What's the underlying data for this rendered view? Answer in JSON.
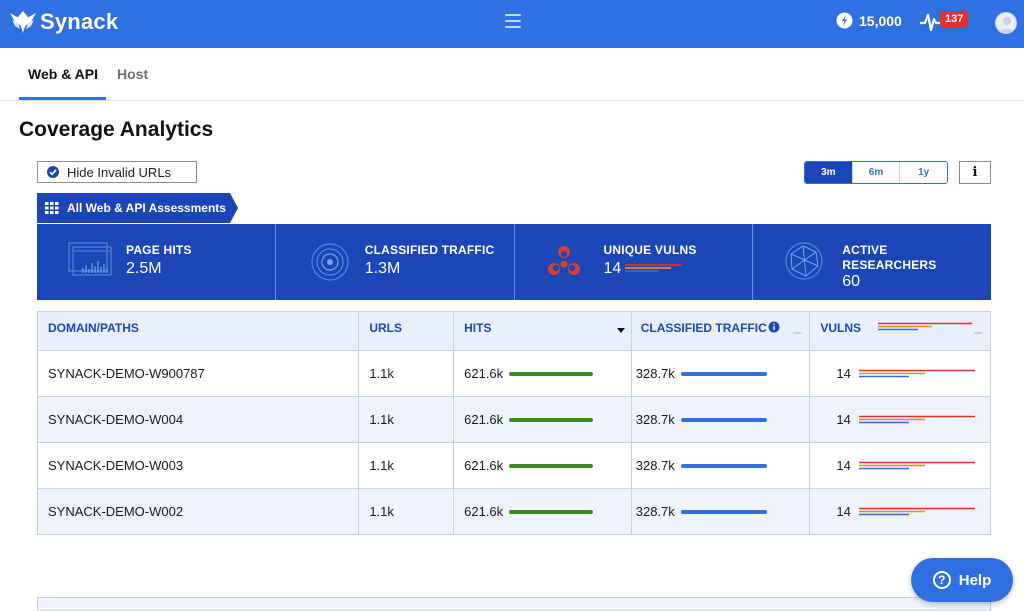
{
  "colors": {
    "brand": "#2f6fe0",
    "dark_blue": "#1c46b8",
    "green_bar": "#3a8a1f",
    "alert_red": "#e4312b",
    "vuln_orange": "#e08a2c"
  },
  "header": {
    "logo_text": "Synack",
    "menu_icon": "hamburger-icon",
    "points": "15,000",
    "alerts_count": "137"
  },
  "tabs": [
    {
      "label": "Web & API",
      "active": true
    },
    {
      "label": "Host",
      "active": false
    }
  ],
  "page": {
    "title": "Coverage Analytics",
    "hide_invalid_label": "Hide Invalid URLs",
    "range_options": [
      "3m",
      "6m",
      "1y"
    ],
    "range_selected": "3m",
    "info_label": "i",
    "assessment_label": "All Web & API Assessments"
  },
  "stats": [
    {
      "label": "PAGE HITS",
      "value": "2.5M",
      "icon": "page-hits-icon"
    },
    {
      "label": "CLASSIFIED TRAFFIC",
      "value": "1.3M",
      "icon": "traffic-icon"
    },
    {
      "label": "UNIQUE VULNS",
      "value": "14",
      "icon": "biohazard-icon"
    },
    {
      "label_line1": "ACTIVE",
      "label_line2": "RESEARCHERS",
      "value": "60",
      "icon": "network-icon"
    }
  ],
  "table": {
    "headers": {
      "domain": "DOMAIN/PATHS",
      "urls": "URLS",
      "hits": "HITS",
      "traffic": "CLASSIFIED TRAFFIC",
      "vulns": "VULNS"
    },
    "rows": [
      {
        "domain": "SYNACK-DEMO-W900787",
        "urls": "1.1k",
        "hits": "621.6k",
        "traffic": "328.7k",
        "vulns": "14"
      },
      {
        "domain": "SYNACK-DEMO-W004",
        "urls": "1.1k",
        "hits": "621.6k",
        "traffic": "328.7k",
        "vulns": "14"
      },
      {
        "domain": "SYNACK-DEMO-W003",
        "urls": "1.1k",
        "hits": "621.6k",
        "traffic": "328.7k",
        "vulns": "14"
      },
      {
        "domain": "SYNACK-DEMO-W002",
        "urls": "1.1k",
        "hits": "621.6k",
        "traffic": "328.7k",
        "vulns": "14"
      }
    ]
  },
  "help": {
    "label": "Help",
    "icon_label": "?"
  }
}
